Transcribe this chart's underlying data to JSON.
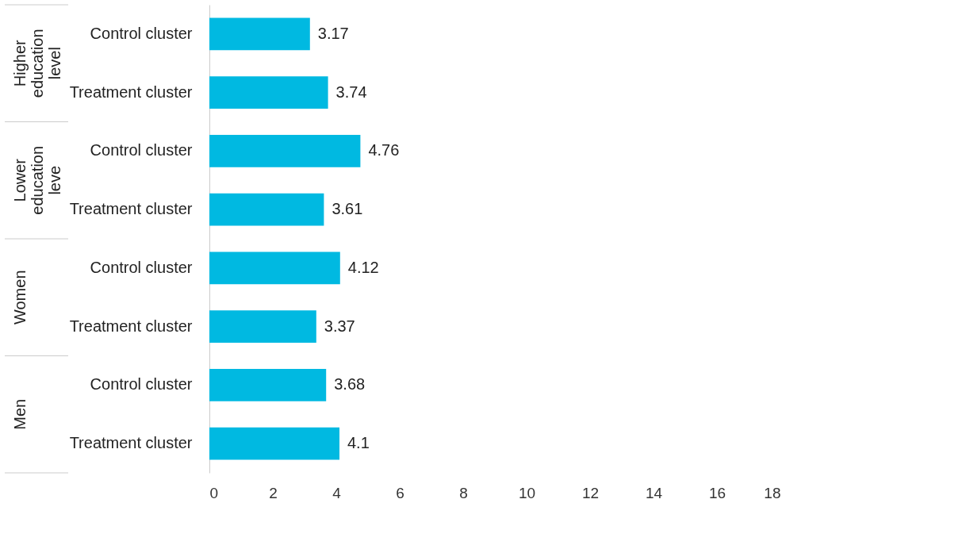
{
  "chart_data": {
    "type": "bar",
    "orientation": "horizontal",
    "categories": [
      "Control cluster",
      "Treatment cluster",
      "Control cluster",
      "Treatment cluster",
      "Control cluster",
      "Treatment cluster",
      "Control cluster",
      "Treatment cluster"
    ],
    "values": [
      3.17,
      3.74,
      4.76,
      3.61,
      4.12,
      3.37,
      3.68,
      4.1
    ],
    "color": "#00b9e1",
    "xlim": [
      0,
      18
    ],
    "xticks": [
      0,
      2,
      4,
      6,
      8,
      10,
      12,
      14,
      16,
      18
    ],
    "grid": false,
    "data_labels": true,
    "annotations": [
      "Higher education level",
      "Lower education leve",
      "Women",
      "Men"
    ]
  }
}
